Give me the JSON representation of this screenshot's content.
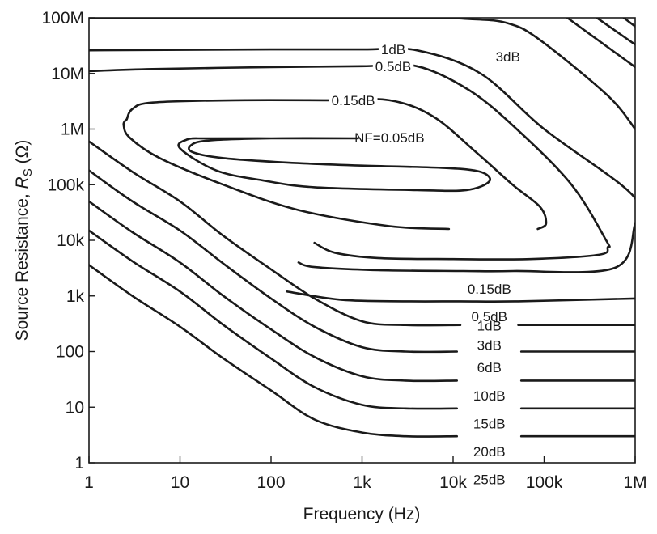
{
  "chart_data": {
    "type": "line",
    "x_scale": "log",
    "y_scale": "log",
    "xlim": [
      1,
      1000000
    ],
    "ylim": [
      1,
      100000000
    ],
    "grid": false,
    "xlabel": "Frequency (Hz)",
    "ylabel_prefix": "Source Resistance, ",
    "ylabel_symbol": "R",
    "ylabel_subscript": "S",
    "ylabel_suffix": " (Ω)",
    "x_ticks": [
      {
        "value": 1,
        "label": "1"
      },
      {
        "value": 10,
        "label": "10"
      },
      {
        "value": 100,
        "label": "100"
      },
      {
        "value": 1000,
        "label": "1k"
      },
      {
        "value": 10000,
        "label": "10k"
      },
      {
        "value": 100000,
        "label": "100k"
      },
      {
        "value": 1000000,
        "label": "1M"
      }
    ],
    "y_ticks": [
      {
        "value": 1,
        "label": "1"
      },
      {
        "value": 10,
        "label": "10"
      },
      {
        "value": 100,
        "label": "100"
      },
      {
        "value": 1000,
        "label": "1k"
      },
      {
        "value": 10000,
        "label": "10k"
      },
      {
        "value": 100000,
        "label": "100k"
      },
      {
        "value": 1000000,
        "label": "1M"
      },
      {
        "value": 10000000,
        "label": "10M"
      },
      {
        "value": 100000000,
        "label": "100M"
      }
    ],
    "series": [
      {
        "name": "NF=0.05dB",
        "label": "NF=0.05dB",
        "label_at": [
          2000,
          700000
        ],
        "gap": [
          700,
          6000
        ],
        "points": [
          [
            900,
            680000
          ],
          [
            100,
            680000
          ],
          [
            20,
            620000
          ],
          [
            13,
            500000
          ],
          [
            14,
            380000
          ],
          [
            30,
            300000
          ],
          [
            150,
            250000
          ],
          [
            1000,
            220000
          ],
          [
            8000,
            200000
          ],
          [
            20000,
            170000
          ],
          [
            25000,
            115000
          ],
          [
            14000,
            80000
          ],
          [
            4000,
            80000
          ],
          [
            300,
            90000
          ],
          [
            80,
            120000
          ],
          [
            25,
            180000
          ],
          [
            10,
            450000
          ],
          [
            12,
            650000
          ],
          [
            20,
            680000
          ],
          [
            100,
            680000
          ],
          [
            700,
            680000
          ]
        ],
        "closed": true
      },
      {
        "name": "0.15dB",
        "label": "0.15dB",
        "label_at": [
          25000,
          1350
        ],
        "gap": [
          9000,
          85000
        ],
        "points": [
          [
            2.6,
            1500000
          ],
          [
            2.4,
            1200000
          ],
          [
            2.8,
            700000
          ],
          [
            6,
            300000
          ],
          [
            30,
            100000
          ],
          [
            200,
            35000
          ],
          [
            2000,
            18000
          ],
          [
            9000,
            16000
          ],
          [
            85000,
            16000
          ],
          [
            105000,
            20000
          ],
          [
            90000,
            40000
          ],
          [
            45000,
            100000
          ],
          [
            18000,
            380000
          ],
          [
            6000,
            1700000
          ],
          [
            2000,
            3300000
          ],
          [
            500,
            3300000
          ],
          [
            40,
            3300000
          ],
          [
            5,
            3000000
          ],
          [
            3,
            2300000
          ],
          [
            2.6,
            1500000
          ]
        ],
        "closed": true
      },
      {
        "name": "0.5dB",
        "label": "0.5dB",
        "label_at": [
          25000,
          430
        ],
        "gap": [
          10000,
          70000
        ],
        "points": [
          [
            1,
            11000000
          ],
          [
            5,
            12000000
          ],
          [
            100,
            13000000
          ],
          [
            1000,
            13500000
          ],
          [
            4000,
            13500000
          ],
          [
            15000,
            5000000
          ],
          [
            50000,
            1000000
          ],
          [
            200000,
            100000
          ],
          [
            480000,
            10000
          ],
          [
            500000,
            7500
          ],
          [
            400000,
            5500
          ],
          [
            70000,
            4600
          ],
          [
            10000,
            4600
          ],
          [
            1500,
            4800
          ],
          [
            500,
            6000
          ],
          [
            300,
            9000
          ]
        ]
      },
      {
        "name": "1dB",
        "label": "1dB",
        "label_at": [
          25000,
          290
        ],
        "gap": [
          13000,
          46000
        ],
        "points": [
          [
            1,
            26000000
          ],
          [
            100,
            27000000
          ],
          [
            1000,
            27000000
          ],
          [
            4000,
            26000000
          ],
          [
            20000,
            10000000
          ],
          [
            100000,
            1000000
          ],
          [
            700000,
            100000
          ],
          [
            1100000,
            40000
          ],
          [
            1000000,
            20000
          ],
          [
            600000,
            3200
          ],
          [
            46000,
            2800
          ],
          [
            13000,
            2800
          ],
          [
            1500,
            2900
          ],
          [
            300,
            3300
          ],
          [
            200,
            4000
          ]
        ]
      },
      {
        "name": "3dB",
        "label": "3dB",
        "label_at": [
          25000,
          130
        ],
        "gap": [
          12000,
          52000
        ],
        "points": [
          [
            1,
            100000000
          ],
          [
            3000,
            100000000
          ],
          [
            15000,
            95000000
          ],
          [
            40000,
            80000000
          ],
          [
            90000,
            40000000
          ],
          [
            500000,
            4000000
          ],
          [
            1000000,
            1000000
          ]
        ]
      },
      {
        "name": "3dB-low",
        "label": "",
        "points": [
          [
            150,
            1200
          ],
          [
            600,
            850
          ],
          [
            3000,
            800
          ],
          [
            12000,
            800
          ],
          [
            52000,
            800
          ],
          [
            1000000,
            900
          ]
        ]
      },
      {
        "name": "6dB",
        "label": "6dB",
        "label_at": [
          25000,
          52
        ],
        "gap": [
          12000,
          52000
        ],
        "points": [
          [
            1,
            600000
          ],
          [
            3,
            170000
          ],
          [
            10,
            50000
          ],
          [
            30,
            12000
          ],
          [
            100,
            3000
          ],
          [
            300,
            900
          ],
          [
            1000,
            350
          ],
          [
            3000,
            300
          ],
          [
            12000,
            300
          ],
          [
            52000,
            300
          ],
          [
            1000000,
            300
          ]
        ]
      },
      {
        "name": "10dB",
        "label": "10dB",
        "label_at": [
          25000,
          16
        ],
        "gap": [
          11000,
          56000
        ],
        "points": [
          [
            1,
            180000
          ],
          [
            3,
            50000
          ],
          [
            10,
            15000
          ],
          [
            30,
            3800
          ],
          [
            100,
            900
          ],
          [
            300,
            280
          ],
          [
            1000,
            120
          ],
          [
            3000,
            100
          ],
          [
            11000,
            100
          ],
          [
            56000,
            100
          ],
          [
            1000000,
            100
          ]
        ]
      },
      {
        "name": "15dB",
        "label": "15dB",
        "label_at": [
          25000,
          5.1
        ],
        "gap": [
          11000,
          56000
        ],
        "points": [
          [
            1,
            50000
          ],
          [
            3,
            14000
          ],
          [
            10,
            4000
          ],
          [
            30,
            1000
          ],
          [
            100,
            250
          ],
          [
            300,
            80
          ],
          [
            1000,
            36
          ],
          [
            3000,
            30
          ],
          [
            11000,
            30
          ],
          [
            56000,
            30
          ],
          [
            1000000,
            30
          ]
        ]
      },
      {
        "name": "20dB",
        "label": "20dB",
        "label_at": [
          25000,
          1.6
        ],
        "gap": [
          11000,
          56000
        ],
        "points": [
          [
            1,
            15000
          ],
          [
            3,
            4200
          ],
          [
            10,
            1200
          ],
          [
            30,
            300
          ],
          [
            100,
            75
          ],
          [
            300,
            23
          ],
          [
            1000,
            11
          ],
          [
            3000,
            9.5
          ],
          [
            11000,
            9.5
          ],
          [
            56000,
            9.5
          ],
          [
            1000000,
            9.5
          ]
        ]
      },
      {
        "name": "25dB",
        "label": "25dB",
        "label_at": [
          25000,
          0.5
        ],
        "gap": [
          11000,
          56000
        ],
        "points": [
          [
            1,
            3600
          ],
          [
            3,
            1000
          ],
          [
            10,
            280
          ],
          [
            30,
            75
          ],
          [
            100,
            20
          ],
          [
            300,
            6
          ],
          [
            1000,
            3.5
          ],
          [
            3000,
            3
          ],
          [
            11000,
            3
          ],
          [
            56000,
            3
          ],
          [
            1000000,
            3
          ]
        ]
      },
      {
        "name": "diag-a",
        "label": "",
        "points": [
          [
            180000,
            100000000
          ],
          [
            1000000,
            13000000
          ]
        ]
      },
      {
        "name": "diag-b",
        "label": "",
        "points": [
          [
            380000,
            100000000
          ],
          [
            1000000,
            33000000
          ]
        ]
      },
      {
        "name": "diag-c",
        "label": "",
        "points": [
          [
            750000,
            100000000
          ],
          [
            1000000,
            70000000
          ]
        ]
      }
    ],
    "annotations": [
      {
        "text": "1dB",
        "at": [
          2200,
          27000000
        ],
        "gap": [
          1000,
          4500
        ]
      },
      {
        "text": "0.5dB",
        "at": [
          2200,
          13500000
        ],
        "gap": [
          800,
          5000
        ]
      },
      {
        "text": "0.15dB",
        "at": [
          800,
          3300000
        ],
        "gap": [
          250,
          2500
        ]
      },
      {
        "text": "3dB",
        "at": [
          40000,
          20000000
        ],
        "gap": null
      }
    ]
  }
}
